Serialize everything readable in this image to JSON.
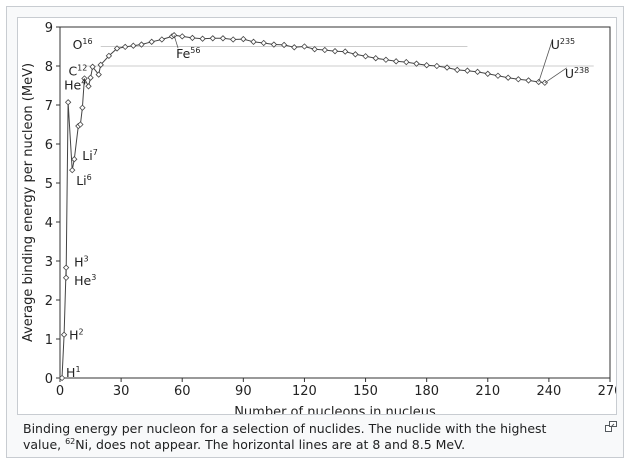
{
  "chart_data": {
    "type": "scatter",
    "title": "",
    "xlabel": "Number of nucleons in nucleus",
    "ylabel": "Average binding energy per nucleon (MeV)",
    "xlim": [
      0,
      270
    ],
    "ylim": [
      0,
      9
    ],
    "xticks": [
      0,
      30,
      60,
      90,
      120,
      150,
      180,
      210,
      240,
      270
    ],
    "yticks": [
      0,
      1,
      2,
      3,
      4,
      5,
      6,
      7,
      8,
      9
    ],
    "reference_lines": [
      8,
      8.5
    ],
    "series": [
      {
        "name": "binding energy per nucleon",
        "x": [
          1,
          2,
          3,
          3,
          4,
          6,
          7,
          9,
          10,
          11,
          12,
          14,
          15,
          16,
          19,
          20,
          24,
          28,
          32,
          36,
          40,
          45,
          50,
          55,
          56,
          60,
          65,
          70,
          75,
          80,
          85,
          90,
          95,
          100,
          105,
          110,
          115,
          120,
          125,
          130,
          135,
          140,
          145,
          150,
          155,
          160,
          165,
          170,
          175,
          180,
          185,
          190,
          195,
          200,
          205,
          210,
          215,
          220,
          225,
          230,
          235,
          238
        ],
        "y": [
          0,
          1.11,
          2.83,
          2.57,
          7.07,
          5.33,
          5.61,
          6.46,
          6.5,
          6.93,
          7.68,
          7.48,
          7.7,
          7.98,
          7.78,
          8.03,
          8.26,
          8.45,
          8.49,
          8.52,
          8.55,
          8.62,
          8.68,
          8.76,
          8.79,
          8.76,
          8.72,
          8.7,
          8.71,
          8.71,
          8.68,
          8.69,
          8.62,
          8.59,
          8.55,
          8.54,
          8.48,
          8.5,
          8.43,
          8.41,
          8.38,
          8.37,
          8.3,
          8.25,
          8.2,
          8.16,
          8.12,
          8.1,
          8.06,
          8.02,
          8.0,
          7.96,
          7.9,
          7.88,
          7.85,
          7.8,
          7.75,
          7.7,
          7.66,
          7.63,
          7.59,
          7.57
        ]
      }
    ],
    "annotations": [
      {
        "base": "H",
        "mass": "1",
        "x": 1,
        "y": 0
      },
      {
        "base": "H",
        "mass": "2",
        "x": 2,
        "y": 1.11
      },
      {
        "base": "H",
        "mass": "3",
        "x": 3,
        "y": 2.83
      },
      {
        "base": "He",
        "mass": "3",
        "x": 3,
        "y": 2.57
      },
      {
        "base": "He",
        "mass": "4",
        "x": 4,
        "y": 7.07
      },
      {
        "base": "Li",
        "mass": "6",
        "x": 6,
        "y": 5.33
      },
      {
        "base": "Li",
        "mass": "7",
        "x": 7,
        "y": 5.61
      },
      {
        "base": "C",
        "mass": "12",
        "x": 12,
        "y": 7.68
      },
      {
        "base": "O",
        "mass": "16",
        "x": 16,
        "y": 7.98
      },
      {
        "base": "Fe",
        "mass": "56",
        "x": 56,
        "y": 8.79
      },
      {
        "base": "U",
        "mass": "235",
        "x": 235,
        "y": 7.59
      },
      {
        "base": "U",
        "mass": "238",
        "x": 238,
        "y": 7.57
      }
    ]
  },
  "caption": {
    "text1": "Binding energy per nucleon for a selection of nuclides. The nuclide with the highest value, ",
    "sup": "62",
    "text2": "Ni, does not appear. The horizontal lines are at 8 and 8.5 MeV."
  },
  "icons": {
    "magnify": "magnify-icon"
  }
}
